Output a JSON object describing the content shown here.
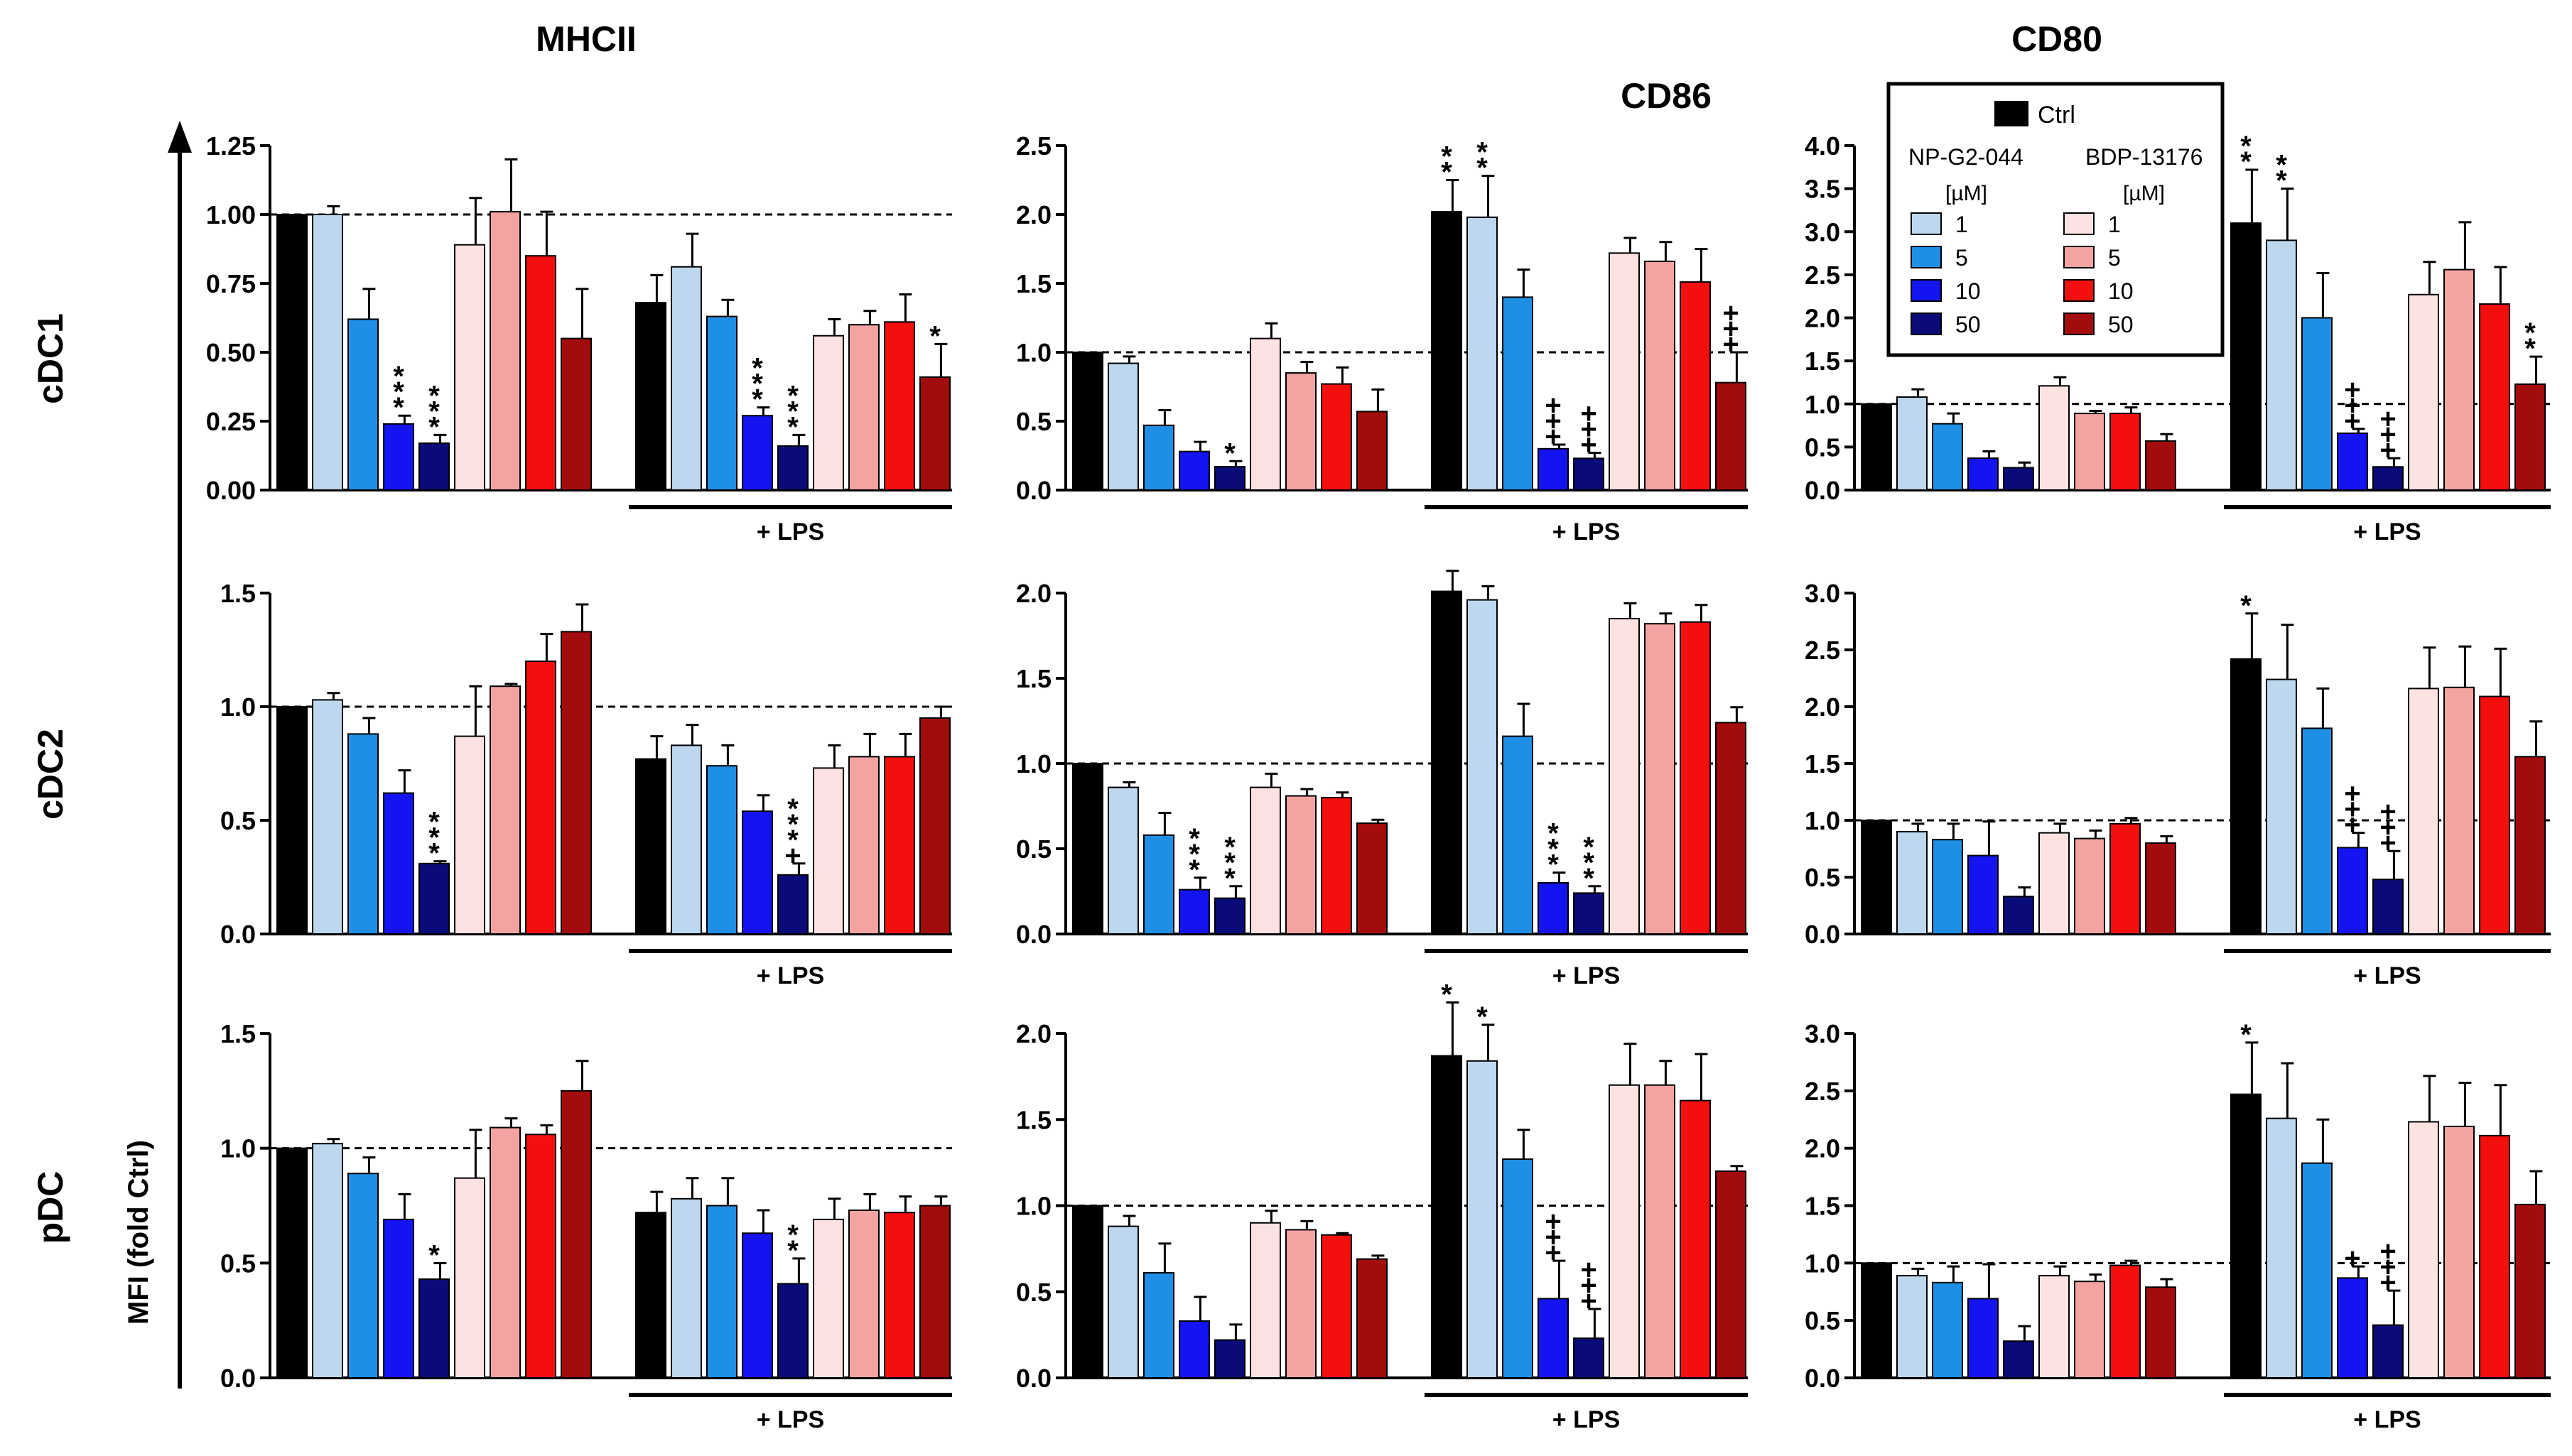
{
  "column_titles": [
    "MHCII",
    "CD86",
    "CD80"
  ],
  "row_titles": [
    "cDC1",
    "cDC2",
    "pDC"
  ],
  "y_axis_label": "MFI (fold Ctrl)",
  "lps_label": "+ LPS",
  "legend": {
    "ctrl_label": "Ctrl",
    "group1_title": "NP-G2-044",
    "group2_title": "BDP-13176",
    "unit_label": "[µM]",
    "group1_entries": [
      "1",
      "5",
      "10",
      "50"
    ],
    "group2_entries": [
      "1",
      "5",
      "10",
      "50"
    ]
  },
  "bar_colors": [
    "#000000",
    "#bdd7ee",
    "#1f8fe6",
    "#1414f0",
    "#0a0a78",
    "#fde2e2",
    "#f4a3a3",
    "#f40f0f",
    "#a30c0c"
  ],
  "chart_data": [
    {
      "type": "bar",
      "row": "cDC1",
      "column": "MHCII",
      "ylim": [
        0,
        1.25
      ],
      "yticks": [
        "0.00",
        "0.25",
        "0.50",
        "0.75",
        "1.00",
        "1.25"
      ],
      "reference_line": 1.0,
      "categories": [
        "Ctrl",
        "NP-G2-044 1",
        "NP-G2-044 5",
        "NP-G2-044 10",
        "NP-G2-044 50",
        "BDP-13176 1",
        "BDP-13176 5",
        "BDP-13176 10",
        "BDP-13176 50"
      ],
      "groups": [
        {
          "values": [
            1.0,
            1.0,
            0.62,
            0.24,
            0.17,
            0.89,
            1.01,
            0.85,
            0.55
          ],
          "errors": [
            0,
            0.03,
            0.11,
            0.03,
            0.03,
            0.17,
            0.19,
            0.16,
            0.18
          ],
          "annotations": [
            "",
            "",
            "",
            "***",
            "***",
            "",
            "",
            "",
            ""
          ]
        },
        {
          "label": "+ LPS",
          "values": [
            0.68,
            0.81,
            0.63,
            0.27,
            0.16,
            0.56,
            0.6,
            0.61,
            0.41
          ],
          "errors": [
            0.1,
            0.12,
            0.06,
            0.03,
            0.04,
            0.06,
            0.05,
            0.1,
            0.12
          ],
          "annotations": [
            "",
            "",
            "",
            "***",
            "***",
            "",
            "",
            "",
            "*"
          ]
        }
      ]
    },
    {
      "type": "bar",
      "row": "cDC1",
      "column": "CD86",
      "ylim": [
        0,
        2.5
      ],
      "yticks": [
        "0.0",
        "0.5",
        "1.0",
        "1.5",
        "2.0",
        "2.5"
      ],
      "reference_line": 1.0,
      "categories": [
        "Ctrl",
        "NP-G2-044 1",
        "NP-G2-044 5",
        "NP-G2-044 10",
        "NP-G2-044 50",
        "BDP-13176 1",
        "BDP-13176 5",
        "BDP-13176 10",
        "BDP-13176 50"
      ],
      "groups": [
        {
          "values": [
            1.0,
            0.92,
            0.47,
            0.28,
            0.17,
            1.1,
            0.85,
            0.77,
            0.57
          ],
          "errors": [
            0,
            0.05,
            0.11,
            0.07,
            0.04,
            0.11,
            0.08,
            0.12,
            0.16
          ],
          "annotations": [
            "",
            "",
            "",
            "",
            "*",
            "",
            "",
            "",
            ""
          ]
        },
        {
          "label": "+ LPS",
          "values": [
            2.02,
            1.98,
            1.4,
            0.3,
            0.23,
            1.72,
            1.66,
            1.51,
            0.78
          ],
          "errors": [
            0.23,
            0.3,
            0.2,
            0.03,
            0.04,
            0.11,
            0.14,
            0.24,
            0.22
          ],
          "annotations": [
            "**",
            "**",
            "",
            "+++",
            "+++",
            "",
            "",
            "",
            "+++"
          ]
        }
      ]
    },
    {
      "type": "bar",
      "row": "cDC1",
      "column": "CD80",
      "ylim": [
        0,
        4.0
      ],
      "yticks": [
        "0.0",
        "0.5",
        "1.0",
        "1.5",
        "2.0",
        "2.5",
        "3.0",
        "3.5",
        "4.0"
      ],
      "reference_line": 1.0,
      "categories": [
        "Ctrl",
        "NP-G2-044 1",
        "NP-G2-044 5",
        "NP-G2-044 10",
        "NP-G2-044 50",
        "BDP-13176 1",
        "BDP-13176 5",
        "BDP-13176 10",
        "BDP-13176 50"
      ],
      "groups": [
        {
          "values": [
            1.0,
            1.08,
            0.77,
            0.37,
            0.26,
            1.21,
            0.89,
            0.89,
            0.57
          ],
          "errors": [
            0,
            0.09,
            0.12,
            0.08,
            0.06,
            0.1,
            0.03,
            0.07,
            0.08
          ],
          "annotations": [
            "",
            "",
            "",
            "",
            "",
            "",
            "",
            "",
            ""
          ]
        },
        {
          "label": "+ LPS",
          "values": [
            3.1,
            2.9,
            2.0,
            0.66,
            0.27,
            2.27,
            2.56,
            2.16,
            1.23
          ],
          "errors": [
            0.62,
            0.6,
            0.52,
            0.05,
            0.1,
            0.38,
            0.55,
            0.43,
            0.32
          ],
          "annotations": [
            "**",
            "**",
            "",
            "+++",
            "+++",
            "",
            "",
            "",
            "**"
          ]
        }
      ]
    },
    {
      "type": "bar",
      "row": "cDC2",
      "column": "MHCII",
      "ylim": [
        0,
        1.5
      ],
      "yticks": [
        "0.0",
        "0.5",
        "1.0",
        "1.5"
      ],
      "reference_line": 1.0,
      "categories": [
        "Ctrl",
        "NP-G2-044 1",
        "NP-G2-044 5",
        "NP-G2-044 10",
        "NP-G2-044 50",
        "BDP-13176 1",
        "BDP-13176 5",
        "BDP-13176 10",
        "BDP-13176 50"
      ],
      "groups": [
        {
          "values": [
            1.0,
            1.03,
            0.88,
            0.62,
            0.31,
            0.87,
            1.09,
            1.2,
            1.33
          ],
          "errors": [
            0,
            0.03,
            0.07,
            0.1,
            0.01,
            0.22,
            0.01,
            0.12,
            0.12
          ],
          "annotations": [
            "",
            "",
            "",
            "",
            "***",
            "",
            "",
            "",
            ""
          ]
        },
        {
          "label": "+ LPS",
          "values": [
            0.77,
            0.83,
            0.74,
            0.54,
            0.26,
            0.73,
            0.78,
            0.78,
            0.95
          ],
          "errors": [
            0.1,
            0.09,
            0.09,
            0.07,
            0.05,
            0.1,
            0.1,
            0.1,
            0.05
          ],
          "annotations": [
            "",
            "",
            "",
            "",
            "***+",
            "",
            "",
            "",
            ""
          ]
        }
      ]
    },
    {
      "type": "bar",
      "row": "cDC2",
      "column": "CD86",
      "ylim": [
        0,
        2.0
      ],
      "yticks": [
        "0.0",
        "0.5",
        "1.0",
        "1.5",
        "2.0"
      ],
      "reference_line": 1.0,
      "categories": [
        "Ctrl",
        "NP-G2-044 1",
        "NP-G2-044 5",
        "NP-G2-044 10",
        "NP-G2-044 50",
        "BDP-13176 1",
        "BDP-13176 5",
        "BDP-13176 10",
        "BDP-13176 50"
      ],
      "groups": [
        {
          "values": [
            1.0,
            0.86,
            0.58,
            0.26,
            0.21,
            0.86,
            0.81,
            0.8,
            0.65
          ],
          "errors": [
            0,
            0.03,
            0.13,
            0.07,
            0.07,
            0.08,
            0.04,
            0.03,
            0.02
          ],
          "annotations": [
            "",
            "",
            "",
            "***",
            "***",
            "",
            "",
            "",
            ""
          ]
        },
        {
          "label": "+ LPS",
          "values": [
            2.01,
            1.96,
            1.16,
            0.3,
            0.24,
            1.85,
            1.82,
            1.83,
            1.24
          ],
          "errors": [
            0.12,
            0.08,
            0.19,
            0.06,
            0.04,
            0.09,
            0.06,
            0.1,
            0.09
          ],
          "annotations": [
            "",
            "",
            "",
            "***",
            "***",
            "",
            "",
            "",
            ""
          ]
        }
      ]
    },
    {
      "type": "bar",
      "row": "cDC2",
      "column": "CD80",
      "ylim": [
        0,
        3.0
      ],
      "yticks": [
        "0.0",
        "0.5",
        "1.0",
        "1.5",
        "2.0",
        "2.5",
        "3.0"
      ],
      "reference_line": 1.0,
      "categories": [
        "Ctrl",
        "NP-G2-044 1",
        "NP-G2-044 5",
        "NP-G2-044 10",
        "NP-G2-044 50",
        "BDP-13176 1",
        "BDP-13176 5",
        "BDP-13176 10",
        "BDP-13176 50"
      ],
      "groups": [
        {
          "values": [
            1.0,
            0.9,
            0.83,
            0.69,
            0.33,
            0.89,
            0.84,
            0.97,
            0.8
          ],
          "errors": [
            0,
            0.07,
            0.14,
            0.3,
            0.08,
            0.08,
            0.07,
            0.05,
            0.06
          ],
          "annotations": [
            "",
            "",
            "",
            "",
            "",
            "",
            "",
            "",
            ""
          ]
        },
        {
          "label": "+ LPS",
          "values": [
            2.42,
            2.24,
            1.81,
            0.76,
            0.48,
            2.16,
            2.17,
            2.09,
            1.56
          ],
          "errors": [
            0.4,
            0.48,
            0.35,
            0.13,
            0.25,
            0.36,
            0.36,
            0.42,
            0.31
          ],
          "annotations": [
            "*",
            "",
            "",
            "+++",
            "+++",
            "",
            "",
            "",
            ""
          ]
        }
      ]
    },
    {
      "type": "bar",
      "row": "pDC",
      "column": "MHCII",
      "ylim": [
        0,
        1.5
      ],
      "yticks": [
        "0.0",
        "0.5",
        "1.0",
        "1.5"
      ],
      "reference_line": 1.0,
      "categories": [
        "Ctrl",
        "NP-G2-044 1",
        "NP-G2-044 5",
        "NP-G2-044 10",
        "NP-G2-044 50",
        "BDP-13176 1",
        "BDP-13176 5",
        "BDP-13176 10",
        "BDP-13176 50"
      ],
      "groups": [
        {
          "values": [
            1.0,
            1.02,
            0.89,
            0.69,
            0.43,
            0.87,
            1.09,
            1.06,
            1.25
          ],
          "errors": [
            0,
            0.02,
            0.07,
            0.11,
            0.07,
            0.21,
            0.04,
            0.04,
            0.13
          ],
          "annotations": [
            "",
            "",
            "",
            "",
            "*",
            "",
            "",
            "",
            ""
          ]
        },
        {
          "label": "+ LPS",
          "values": [
            0.72,
            0.78,
            0.75,
            0.63,
            0.41,
            0.69,
            0.73,
            0.72,
            0.75
          ],
          "errors": [
            0.09,
            0.09,
            0.12,
            0.1,
            0.11,
            0.09,
            0.07,
            0.07,
            0.04
          ],
          "annotations": [
            "",
            "",
            "",
            "",
            "**",
            "",
            "",
            "",
            ""
          ]
        }
      ]
    },
    {
      "type": "bar",
      "row": "pDC",
      "column": "CD86",
      "ylim": [
        0,
        2.0
      ],
      "yticks": [
        "0.0",
        "0.5",
        "1.0",
        "1.5",
        "2.0"
      ],
      "reference_line": 1.0,
      "categories": [
        "Ctrl",
        "NP-G2-044 1",
        "NP-G2-044 5",
        "NP-G2-044 10",
        "NP-G2-044 50",
        "BDP-13176 1",
        "BDP-13176 5",
        "BDP-13176 10",
        "BDP-13176 50"
      ],
      "groups": [
        {
          "values": [
            1.0,
            0.88,
            0.61,
            0.33,
            0.22,
            0.9,
            0.86,
            0.83,
            0.69
          ],
          "errors": [
            0,
            0.06,
            0.17,
            0.14,
            0.09,
            0.07,
            0.05,
            0.01,
            0.02
          ],
          "annotations": [
            "",
            "",
            "",
            "",
            "",
            "",
            "",
            "",
            ""
          ]
        },
        {
          "label": "+ LPS",
          "values": [
            1.87,
            1.84,
            1.27,
            0.46,
            0.23,
            1.7,
            1.7,
            1.61,
            1.2
          ],
          "errors": [
            0.31,
            0.21,
            0.17,
            0.22,
            0.17,
            0.24,
            0.14,
            0.27,
            0.03
          ],
          "annotations": [
            "*",
            "*",
            "",
            "+++",
            "+++",
            "",
            "",
            "",
            ""
          ]
        }
      ]
    },
    {
      "type": "bar",
      "row": "pDC",
      "column": "CD80",
      "ylim": [
        0,
        3.0
      ],
      "yticks": [
        "0.0",
        "0.5",
        "1.0",
        "1.5",
        "2.0",
        "2.5",
        "3.0"
      ],
      "reference_line": 1.0,
      "categories": [
        "Ctrl",
        "NP-G2-044 1",
        "NP-G2-044 5",
        "NP-G2-044 10",
        "NP-G2-044 50",
        "BDP-13176 1",
        "BDP-13176 5",
        "BDP-13176 10",
        "BDP-13176 50"
      ],
      "groups": [
        {
          "values": [
            1.0,
            0.89,
            0.83,
            0.69,
            0.32,
            0.89,
            0.84,
            0.98,
            0.79
          ],
          "errors": [
            0,
            0.06,
            0.14,
            0.3,
            0.13,
            0.08,
            0.06,
            0.04,
            0.07
          ],
          "annotations": [
            "",
            "",
            "",
            "",
            "",
            "",
            "",
            "",
            ""
          ]
        },
        {
          "label": "+ LPS",
          "values": [
            2.47,
            2.26,
            1.87,
            0.87,
            0.46,
            2.23,
            2.19,
            2.11,
            1.51
          ],
          "errors": [
            0.45,
            0.48,
            0.38,
            0.1,
            0.3,
            0.4,
            0.38,
            0.44,
            0.29
          ],
          "annotations": [
            "*",
            "",
            "",
            "+",
            "+++",
            "",
            "",
            "",
            ""
          ]
        }
      ]
    }
  ]
}
